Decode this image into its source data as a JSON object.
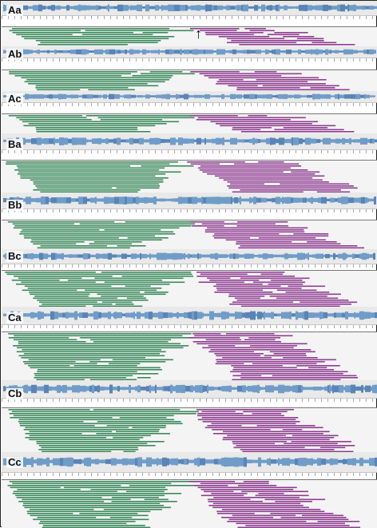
{
  "figure": {
    "panels": [
      {
        "label": "Aa"
      },
      {
        "label": "Ab"
      },
      {
        "label": "Ac"
      },
      {
        "label": "Ba"
      },
      {
        "label": "Bb"
      },
      {
        "label": "Bc"
      },
      {
        "label": "Ca"
      },
      {
        "label": "Cb"
      },
      {
        "label": "Cc"
      }
    ],
    "arrow_glyph": "↑",
    "colors": {
      "forward_read": "#3a8a5c",
      "reverse_read": "#8f3d92",
      "coverage": "#5b8fc2",
      "coverage_dark": "#3f73ad",
      "track_bg": "#e9e9e9"
    }
  }
}
